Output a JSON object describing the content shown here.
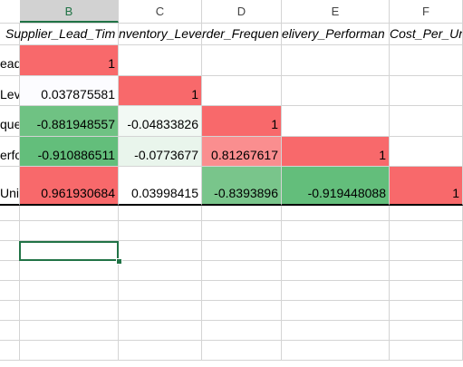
{
  "columns": [
    "B",
    "C",
    "D",
    "E",
    "F"
  ],
  "selected_column": "B",
  "header_row": [
    "Supplier_Lead_Tim",
    "nventory_Leve",
    "rder_Frequen",
    "elivery_Performan",
    "Cost_Per_Uni"
  ],
  "row_labels": [
    "ead",
    "Lev",
    "quer",
    "erfo",
    "Unit"
  ],
  "rows": [
    [
      "1",
      "",
      "",
      "",
      ""
    ],
    [
      "0.037875581",
      "1",
      "",
      "",
      ""
    ],
    [
      "-0.881948557",
      "-0.04833826",
      "1",
      "",
      ""
    ],
    [
      "-0.910886511",
      "-0.0773677",
      "0.81267617",
      "1",
      ""
    ],
    [
      "0.961930684",
      "0.03998415",
      "-0.8393896",
      "-0.919448088",
      "1"
    ]
  ],
  "colors": {
    "strong_positive": "#f8696b",
    "mid_positive": "#fa8e8f",
    "weak_positive": "#fcfcff",
    "weak_negative": "#e9f5ec",
    "moderate_negative": "#79c58b",
    "strong_negative": "#63be7b",
    "selection": "#217346"
  }
}
